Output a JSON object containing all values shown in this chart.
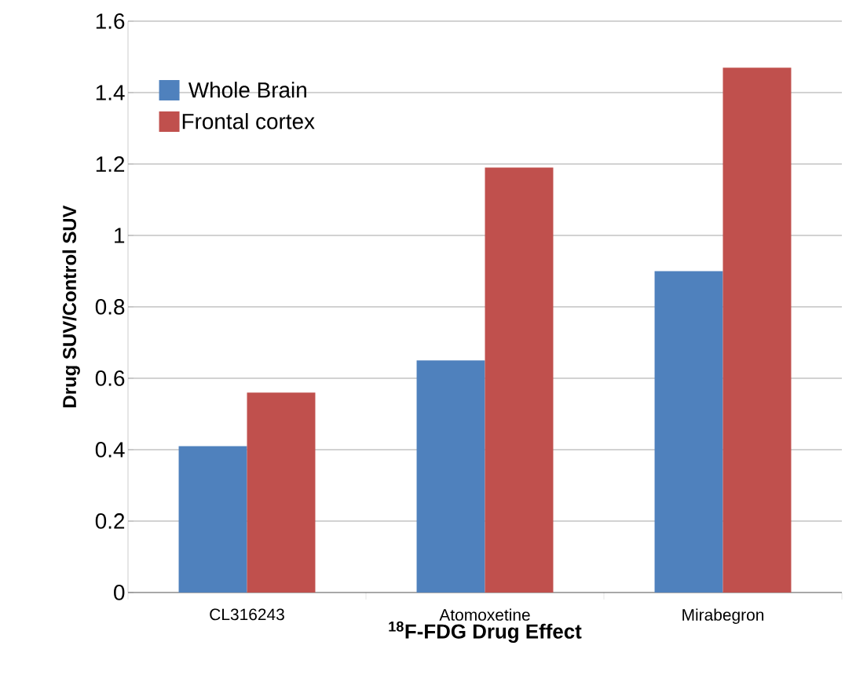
{
  "chart_data": {
    "type": "bar",
    "xlabel": "$^{18}$F-FDG Drug Effect",
    "ylabel": "Drug SUV/Control SUV",
    "categories": [
      "CL316243",
      "Atomoxetine",
      "Mirabegron"
    ],
    "series": [
      {
        "name": "Whole Brain",
        "color": "#4f81bd",
        "values": [
          0.41,
          0.65,
          0.9
        ]
      },
      {
        "name": "Frontal cortex",
        "color": "#c0504d",
        "values": [
          0.56,
          1.19,
          1.47
        ]
      }
    ],
    "ylim": [
      0,
      1.6
    ],
    "yticks": [
      0,
      0.2,
      0.4,
      0.6,
      0.8,
      1,
      1.2,
      1.4,
      1.6
    ],
    "grid": "y",
    "legend": "top left"
  }
}
